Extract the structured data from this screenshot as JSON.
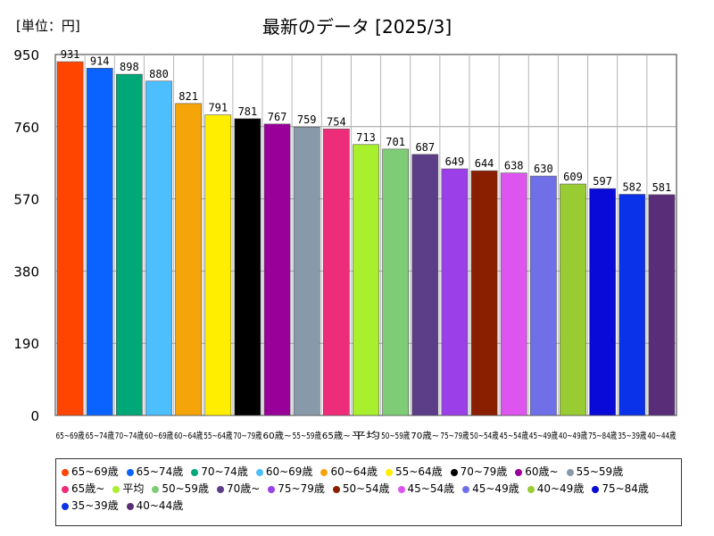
{
  "unit_label": "[単位：円]",
  "chart_data": {
    "type": "bar",
    "title": "最新のデータ [2025/3]",
    "ylim": [
      0,
      950
    ],
    "yticks": [
      0,
      190,
      380,
      570,
      760,
      950
    ],
    "grid": true,
    "categories": [
      "65~69歳",
      "65~74歳",
      "70~74歳",
      "60~69歳",
      "60~64歳",
      "55~64歳",
      "70~79歳",
      "60歳~",
      "55~59歳",
      "65歳~",
      "平均",
      "50~59歳",
      "70歳~",
      "75~79歳",
      "50~54歳",
      "45~54歳",
      "45~49歳",
      "40~49歳",
      "75~84歳",
      "35~39歳",
      "40~44歳"
    ],
    "axis_labels": [
      "65~69歳",
      "65~74歳",
      "70~74歳",
      "60~69歳",
      "60~64歳",
      "55~64歳",
      "70~79歳",
      "60歳~",
      "55~59歳",
      "65歳~",
      "平均",
      "50~59歳",
      "70歳~",
      "75~79歳",
      "50~54歳",
      "45~54歳",
      "45~49歳",
      "40~49歳",
      "75~84歳",
      "35~39歳",
      "40~44歳"
    ],
    "values": [
      931,
      914,
      898,
      880,
      821,
      791,
      781,
      767,
      759,
      754,
      713,
      701,
      687,
      649,
      644,
      638,
      630,
      609,
      597,
      582,
      581
    ],
    "colors": [
      "#ff4500",
      "#0b63ff",
      "#00a878",
      "#4dbfff",
      "#f5a50a",
      "#ffee00",
      "#000000",
      "#990099",
      "#8899aa",
      "#ee2d7a",
      "#a8ef2e",
      "#7fcc77",
      "#5c3d87",
      "#9b40e8",
      "#8a1f00",
      "#dd55ee",
      "#6f70e8",
      "#99cc33",
      "#0a0ad8",
      "#0a32e8",
      "#5a2d78"
    ]
  }
}
